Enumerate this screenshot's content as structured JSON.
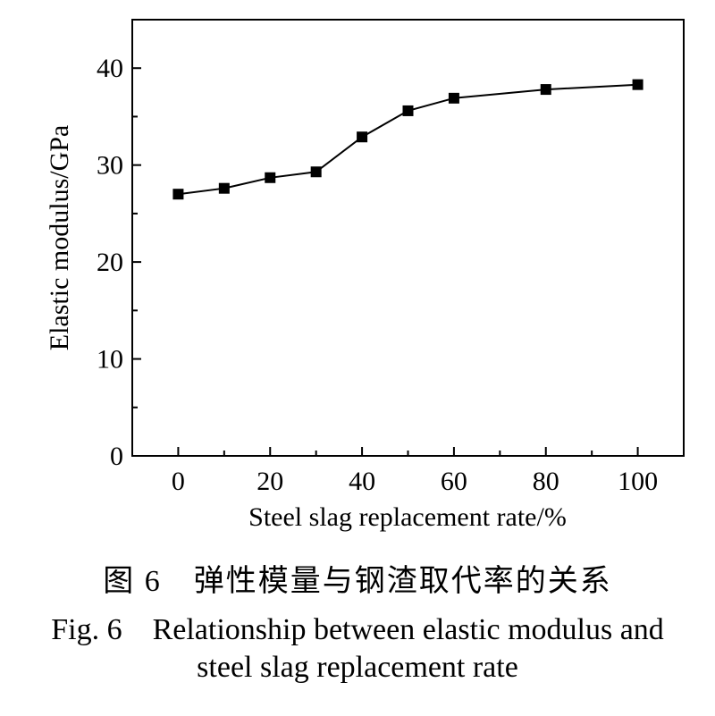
{
  "chart_data": {
    "type": "line",
    "x": [
      0,
      10,
      20,
      30,
      40,
      50,
      60,
      80,
      100
    ],
    "series": [
      {
        "values": [
          27.0,
          27.6,
          28.7,
          29.3,
          32.9,
          35.6,
          36.9,
          37.8,
          38.3
        ]
      }
    ],
    "xlabel": "Steel slag replacement rate/%",
    "ylabel": "Elastic modulus/GPa",
    "xticks": [
      "0",
      "20",
      "40",
      "60",
      "80",
      "100"
    ],
    "yticks": [
      "0",
      "10",
      "20",
      "30",
      "40"
    ],
    "xlim": [
      -10,
      110
    ],
    "ylim": [
      0,
      45
    ],
    "grid": false,
    "marker": "square",
    "color": "#000000"
  },
  "caption": {
    "cn": "图 6　弹性模量与钢渣取代率的关系",
    "en_line1": "Fig. 6　Relationship between elastic modulus and",
    "en_line2": "steel slag replacement rate"
  }
}
